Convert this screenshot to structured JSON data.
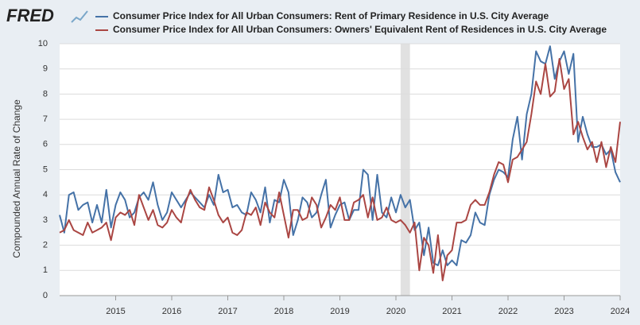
{
  "chart_data": {
    "type": "line",
    "logo": "FRED",
    "y_label": "Compounded Annual Rate of Change",
    "categories": [
      null,
      null,
      null,
      null,
      null,
      null,
      null,
      null,
      null,
      null,
      null,
      null,
      "2015",
      null,
      null,
      null,
      null,
      null,
      null,
      null,
      null,
      null,
      null,
      null,
      "2016",
      null,
      null,
      null,
      null,
      null,
      null,
      null,
      null,
      null,
      null,
      null,
      "2017",
      null,
      null,
      null,
      null,
      null,
      null,
      null,
      null,
      null,
      null,
      null,
      "2018",
      null,
      null,
      null,
      null,
      null,
      null,
      null,
      null,
      null,
      null,
      null,
      "2019",
      null,
      null,
      null,
      null,
      null,
      null,
      null,
      null,
      null,
      null,
      null,
      "2020",
      null,
      null,
      null,
      null,
      null,
      null,
      null,
      null,
      null,
      null,
      null,
      "2021",
      null,
      null,
      null,
      null,
      null,
      null,
      null,
      null,
      null,
      null,
      null,
      "2022",
      null,
      null,
      null,
      null,
      null,
      null,
      null,
      null,
      null,
      null,
      null,
      "2023",
      null,
      null,
      null,
      null,
      null,
      null,
      null,
      null,
      null,
      null,
      null,
      "2024"
    ],
    "recessions": [
      [
        73,
        75
      ]
    ],
    "series": [
      {
        "name": "Consumer Price Index for All Urban Consumers: Rent of Primary Residence in U.S. City Average",
        "color": "#4572a7",
        "values": [
          3.2,
          2.5,
          4.0,
          4.1,
          3.4,
          3.6,
          3.7,
          2.9,
          3.6,
          2.9,
          4.2,
          2.7,
          3.6,
          4.1,
          3.8,
          3.1,
          3.3,
          3.9,
          4.1,
          3.8,
          4.5,
          3.6,
          3.0,
          3.3,
          4.1,
          3.8,
          3.5,
          3.8,
          4.1,
          3.9,
          3.7,
          3.5,
          4.0,
          3.6,
          4.8,
          4.1,
          4.2,
          3.5,
          3.6,
          3.3,
          3.2,
          4.1,
          3.8,
          3.3,
          4.3,
          2.9,
          3.8,
          3.7,
          4.6,
          4.1,
          2.4,
          3.0,
          3.9,
          3.7,
          3.1,
          3.3,
          4.0,
          4.6,
          2.7,
          3.2,
          3.6,
          3.7,
          3.0,
          3.4,
          3.4,
          5.0,
          4.8,
          3.0,
          4.8,
          3.3,
          3.1,
          3.9,
          3.3,
          4.0,
          3.5,
          3.8,
          2.6,
          2.9,
          1.6,
          2.7,
          1.3,
          1.2,
          1.8,
          1.2,
          1.4,
          1.2,
          2.2,
          2.1,
          2.4,
          3.3,
          2.9,
          2.8,
          4.0,
          4.6,
          5.0,
          4.9,
          4.7,
          6.2,
          7.1,
          5.4,
          7.2,
          8.0,
          9.7,
          9.3,
          9.2,
          9.9,
          8.6,
          9.3,
          9.7,
          8.8,
          9.6,
          6.1,
          7.1,
          6.4,
          5.9,
          5.9,
          6.0,
          5.6,
          5.8,
          4.9,
          4.5
        ]
      },
      {
        "name": "Consumer Price Index for All Urban Consumers: Owners' Equivalent Rent of Residences in U.S. City Average",
        "color": "#aa4643",
        "values": [
          2.5,
          2.6,
          3.0,
          2.6,
          2.5,
          2.4,
          2.9,
          2.5,
          2.6,
          2.7,
          2.9,
          2.2,
          3.1,
          3.3,
          3.2,
          3.4,
          2.8,
          4.0,
          3.5,
          3.0,
          3.4,
          2.8,
          2.7,
          2.9,
          3.4,
          3.1,
          2.9,
          3.7,
          4.2,
          3.8,
          3.5,
          3.4,
          4.3,
          3.8,
          3.2,
          2.9,
          3.1,
          2.5,
          2.4,
          2.6,
          3.3,
          3.2,
          3.5,
          2.8,
          3.7,
          3.3,
          3.1,
          4.1,
          3.2,
          2.3,
          3.4,
          3.4,
          3.0,
          3.1,
          3.9,
          3.6,
          2.7,
          3.1,
          3.6,
          3.4,
          3.9,
          3.0,
          3.0,
          3.7,
          3.8,
          4.0,
          3.1,
          3.9,
          3.0,
          3.1,
          3.5,
          3.0,
          2.9,
          3.0,
          2.8,
          2.5,
          2.9,
          1.0,
          2.3,
          2.0,
          0.9,
          2.4,
          0.6,
          1.6,
          1.8,
          2.9,
          2.9,
          3.0,
          3.6,
          3.8,
          3.6,
          3.6,
          4.1,
          4.8,
          5.3,
          5.2,
          4.5,
          5.4,
          5.5,
          5.8,
          6.1,
          7.2,
          8.5,
          8.0,
          9.2,
          7.9,
          8.1,
          9.4,
          8.2,
          8.6,
          6.4,
          6.9,
          6.3,
          5.8,
          6.1,
          5.3,
          6.1,
          5.1,
          5.9,
          5.3,
          6.9
        ]
      }
    ],
    "ylim": [
      0,
      10
    ],
    "yticks": [
      0,
      1,
      2,
      3,
      4,
      5,
      6,
      7,
      8,
      9,
      10
    ],
    "grid": true
  }
}
